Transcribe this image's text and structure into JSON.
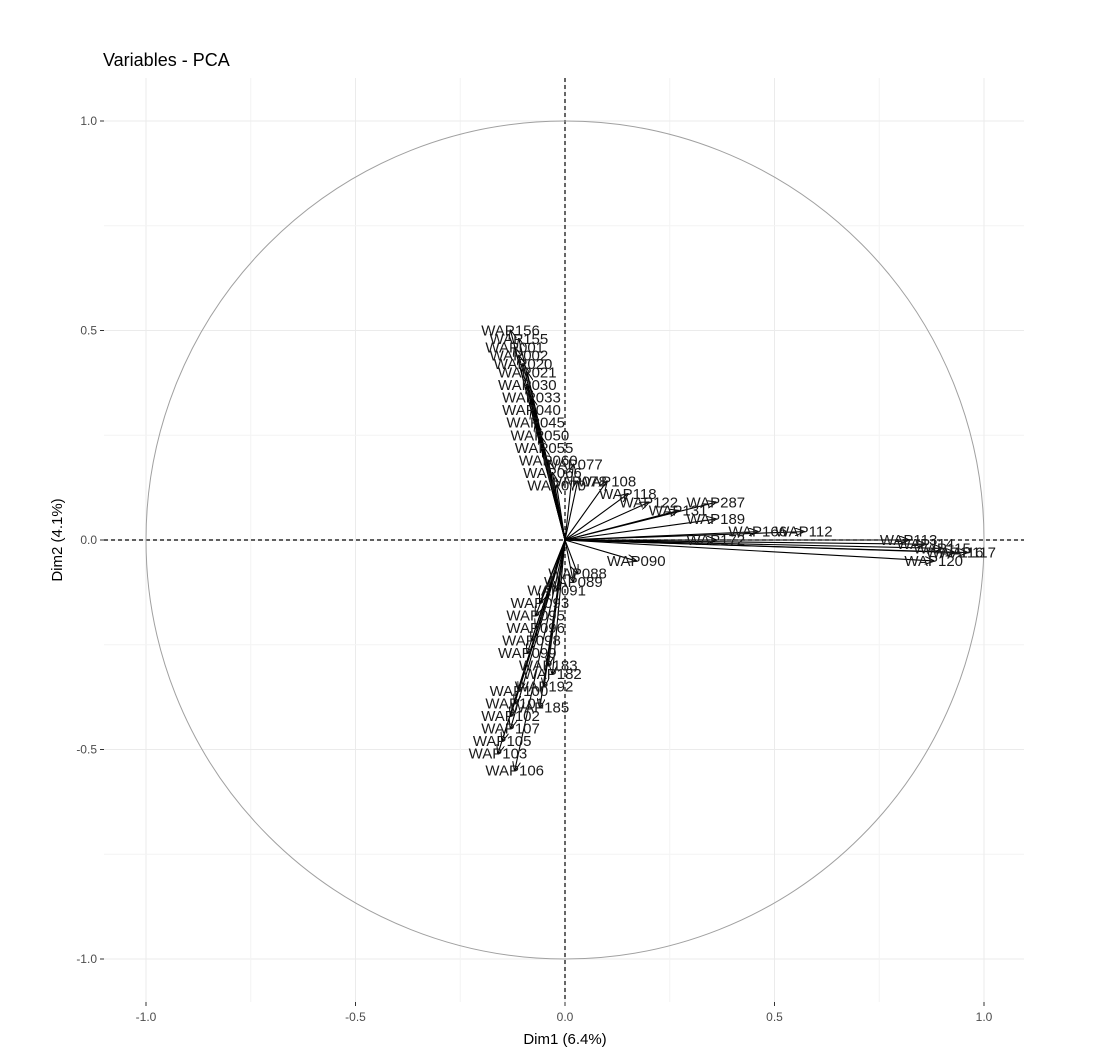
{
  "chart_data": {
    "type": "scatter",
    "title": "Variables - PCA",
    "xlabel": "Dim1 (6.4%)",
    "ylabel": "Dim2 (4.1%)",
    "xlim": [
      -1.0,
      1.0
    ],
    "ylim": [
      -1.0,
      1.0
    ],
    "x_ticks": [
      "-1.0",
      "-0.5",
      "0.0",
      "0.5",
      "1.0"
    ],
    "y_ticks": [
      "-1.0",
      "-0.5",
      "0.0",
      "0.5",
      "1.0"
    ],
    "grid": true,
    "unit_circle": true,
    "reference_lines": [
      "x=0",
      "y=0"
    ],
    "colors": {
      "arrows": "#000000",
      "circle": "#a0a0a0",
      "grid": "#ebebeb"
    },
    "variables": [
      {
        "name": "WAP156",
        "x": -0.13,
        "y": 0.5
      },
      {
        "name": "WAP155",
        "x": -0.11,
        "y": 0.48
      },
      {
        "name": "WAP001",
        "x": -0.12,
        "y": 0.46
      },
      {
        "name": "WAP002",
        "x": -0.11,
        "y": 0.44
      },
      {
        "name": "WAP020",
        "x": -0.1,
        "y": 0.42
      },
      {
        "name": "WAP021",
        "x": -0.09,
        "y": 0.4
      },
      {
        "name": "WAP030",
        "x": -0.09,
        "y": 0.37
      },
      {
        "name": "WAP033",
        "x": -0.08,
        "y": 0.34
      },
      {
        "name": "WAP040",
        "x": -0.08,
        "y": 0.31
      },
      {
        "name": "WAP045",
        "x": -0.07,
        "y": 0.28
      },
      {
        "name": "WAP050",
        "x": -0.06,
        "y": 0.25
      },
      {
        "name": "WAP055",
        "x": -0.05,
        "y": 0.22
      },
      {
        "name": "WAP060",
        "x": -0.04,
        "y": 0.19
      },
      {
        "name": "WAP066",
        "x": -0.03,
        "y": 0.16
      },
      {
        "name": "WAP070",
        "x": -0.02,
        "y": 0.13
      },
      {
        "name": "WAP077",
        "x": 0.02,
        "y": 0.18
      },
      {
        "name": "WAP078",
        "x": 0.03,
        "y": 0.14
      },
      {
        "name": "WAP108",
        "x": 0.1,
        "y": 0.14
      },
      {
        "name": "WAP118",
        "x": 0.15,
        "y": 0.11
      },
      {
        "name": "WAP122",
        "x": 0.2,
        "y": 0.09
      },
      {
        "name": "WAP131",
        "x": 0.27,
        "y": 0.07
      },
      {
        "name": "WAP287",
        "x": 0.36,
        "y": 0.09
      },
      {
        "name": "WAP189",
        "x": 0.36,
        "y": 0.05
      },
      {
        "name": "WAP166",
        "x": 0.46,
        "y": 0.02
      },
      {
        "name": "WAP112",
        "x": 0.57,
        "y": 0.02
      },
      {
        "name": "WAP172",
        "x": 0.36,
        "y": 0.0
      },
      {
        "name": "WAP113",
        "x": 0.82,
        "y": 0.0
      },
      {
        "name": "WAP114",
        "x": 0.86,
        "y": -0.01
      },
      {
        "name": "WAP115",
        "x": 0.9,
        "y": -0.02
      },
      {
        "name": "WAP116",
        "x": 0.93,
        "y": -0.03
      },
      {
        "name": "WAP117",
        "x": 0.96,
        "y": -0.03
      },
      {
        "name": "WAP120",
        "x": 0.88,
        "y": -0.05
      },
      {
        "name": "WAP090",
        "x": 0.17,
        "y": -0.05
      },
      {
        "name": "WAP088",
        "x": 0.03,
        "y": -0.08
      },
      {
        "name": "WAP089",
        "x": 0.02,
        "y": -0.1
      },
      {
        "name": "WAP091",
        "x": -0.02,
        "y": -0.12
      },
      {
        "name": "WAP093",
        "x": -0.06,
        "y": -0.15
      },
      {
        "name": "WAP095",
        "x": -0.07,
        "y": -0.18
      },
      {
        "name": "WAP096",
        "x": -0.07,
        "y": -0.21
      },
      {
        "name": "WAP098",
        "x": -0.08,
        "y": -0.24
      },
      {
        "name": "WAP099",
        "x": -0.09,
        "y": -0.27
      },
      {
        "name": "WAP182",
        "x": -0.03,
        "y": -0.32
      },
      {
        "name": "WAP183",
        "x": -0.04,
        "y": -0.3
      },
      {
        "name": "WAP192",
        "x": -0.05,
        "y": -0.35
      },
      {
        "name": "WAP100",
        "x": -0.11,
        "y": -0.36
      },
      {
        "name": "WAP101",
        "x": -0.12,
        "y": -0.39
      },
      {
        "name": "WAP185",
        "x": -0.06,
        "y": -0.4
      },
      {
        "name": "WAP102",
        "x": -0.13,
        "y": -0.42
      },
      {
        "name": "WAP107",
        "x": -0.13,
        "y": -0.45
      },
      {
        "name": "WAP105",
        "x": -0.15,
        "y": -0.48
      },
      {
        "name": "WAP103",
        "x": -0.16,
        "y": -0.51
      },
      {
        "name": "WAP106",
        "x": -0.12,
        "y": -0.55
      }
    ]
  }
}
